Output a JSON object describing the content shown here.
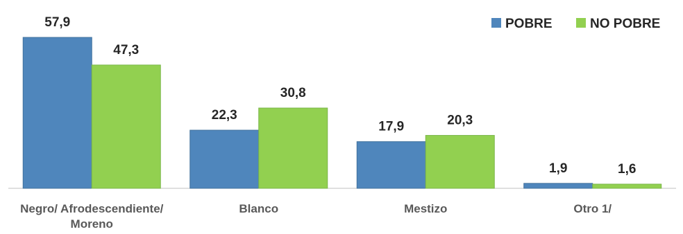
{
  "chart_data": {
    "type": "bar",
    "categories": [
      [
        "Negro/ Afrodescendiente/",
        "Moreno"
      ],
      [
        "Blanco"
      ],
      [
        "Mestizo"
      ],
      [
        "Otro 1/"
      ]
    ],
    "series": [
      {
        "name": "POBRE",
        "color": "#4F86BC",
        "values": [
          57.9,
          22.3,
          17.9,
          1.9
        ],
        "labels": [
          "57,9",
          "22,3",
          "17,9",
          "1,9"
        ]
      },
      {
        "name": "NO POBRE",
        "color": "#92D050",
        "values": [
          47.3,
          30.8,
          20.3,
          1.6
        ],
        "labels": [
          "47,3",
          "30,8",
          "20,3",
          "1,6"
        ]
      }
    ],
    "ylim": [
      0,
      57.9
    ],
    "legend_position": "top-right",
    "grid": false
  }
}
